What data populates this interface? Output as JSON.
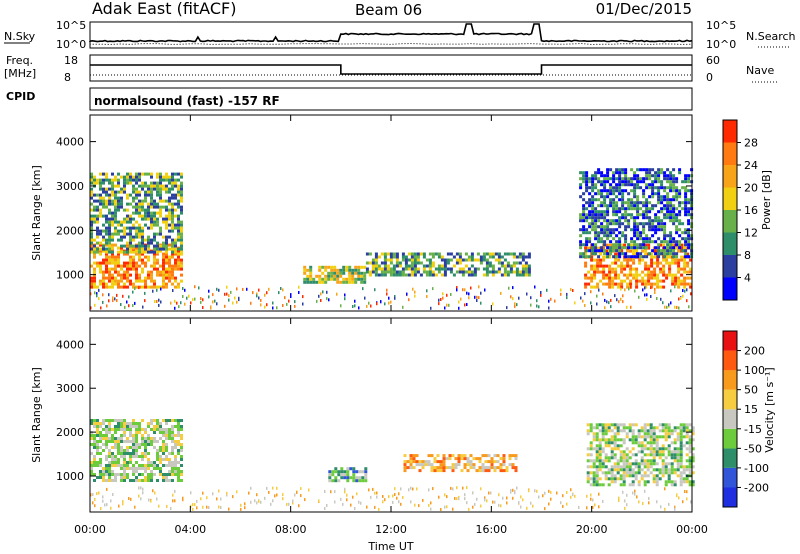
{
  "header": {
    "station": "Adak East (fitACF)",
    "beam": "Beam 06",
    "date": "01/Dec/2015"
  },
  "top_panels": {
    "nsky_label": "N.Sky",
    "nsearch_label": "N.Search",
    "nsky_ticks": [
      "10^5",
      "10^0"
    ],
    "nsearch_ticks": [
      "10^5",
      "10^0"
    ],
    "freq_label_1": "Freq.",
    "freq_label_2": "[MHz]",
    "freq_ticks": [
      "18",
      "8"
    ],
    "nave_label": "Nave",
    "nave_ticks": [
      "60",
      "0"
    ],
    "cpid_label": "CPID",
    "cpid_text": "normalsound (fast) -157 RF"
  },
  "chart_data": [
    {
      "type": "heatmap",
      "name": "power",
      "ylabel": "Slant Range [km]",
      "xlabel": "",
      "ylim": [
        180,
        4600
      ],
      "yticks": [
        1000,
        2000,
        3000,
        4000
      ],
      "xlim_hours": [
        0,
        24
      ],
      "colorbar": {
        "label": "Power [dB]",
        "ticks": [
          4,
          8,
          12,
          16,
          20,
          24,
          28
        ],
        "colors": [
          "#0000ff",
          "#2a3fa0",
          "#2f8e6a",
          "#67b04a",
          "#f0d010",
          "#f7a418",
          "#ff7a10",
          "#ff2a00"
        ]
      },
      "regions": [
        {
          "t": [
            0.0,
            3.6
          ],
          "r": [
            750,
            1700
          ],
          "level": 6
        },
        {
          "t": [
            0.0,
            3.7
          ],
          "r": [
            1500,
            3300
          ],
          "level": 3
        },
        {
          "t": [
            8.5,
            11.0
          ],
          "r": [
            800,
            1200
          ],
          "level": 4
        },
        {
          "t": [
            11.0,
            17.5
          ],
          "r": [
            1000,
            1500
          ],
          "level": 3
        },
        {
          "t": [
            19.7,
            24.0
          ],
          "r": [
            750,
            1700
          ],
          "level": 6
        },
        {
          "t": [
            19.5,
            24.0
          ],
          "r": [
            1400,
            3400
          ],
          "level": 2
        }
      ]
    },
    {
      "type": "heatmap",
      "name": "velocity",
      "ylabel": "Slant Range [km]",
      "xlabel": "Time UT",
      "ylim": [
        180,
        4600
      ],
      "yticks": [
        1000,
        2000,
        3000,
        4000
      ],
      "xlim_hours": [
        0,
        24
      ],
      "xtick_labels": [
        "00:00",
        "04:00",
        "08:00",
        "12:00",
        "16:00",
        "20:00",
        "00:00"
      ],
      "colorbar": {
        "label": "Velocity [m s⁻¹]",
        "ticks": [
          "200",
          "100",
          "50",
          "15",
          "-15",
          "-50",
          "-100",
          "-200"
        ],
        "colors": [
          "#1e2ee0",
          "#3055d8",
          "#2f8e6a",
          "#6ccc3c",
          "#c8c8c0",
          "#f6cc40",
          "#f89a1c",
          "#ff5a10",
          "#e81010"
        ]
      },
      "regions": [
        {
          "t": [
            0.0,
            3.6
          ],
          "r": [
            900,
            2300
          ],
          "level": "gray"
        },
        {
          "t": [
            9.5,
            11.0
          ],
          "r": [
            900,
            1200
          ],
          "level": "green"
        },
        {
          "t": [
            12.5,
            17.0
          ],
          "r": [
            1100,
            1500
          ],
          "level": "orange"
        },
        {
          "t": [
            19.8,
            24.0
          ],
          "r": [
            800,
            2200
          ],
          "level": "gray"
        }
      ]
    }
  ]
}
